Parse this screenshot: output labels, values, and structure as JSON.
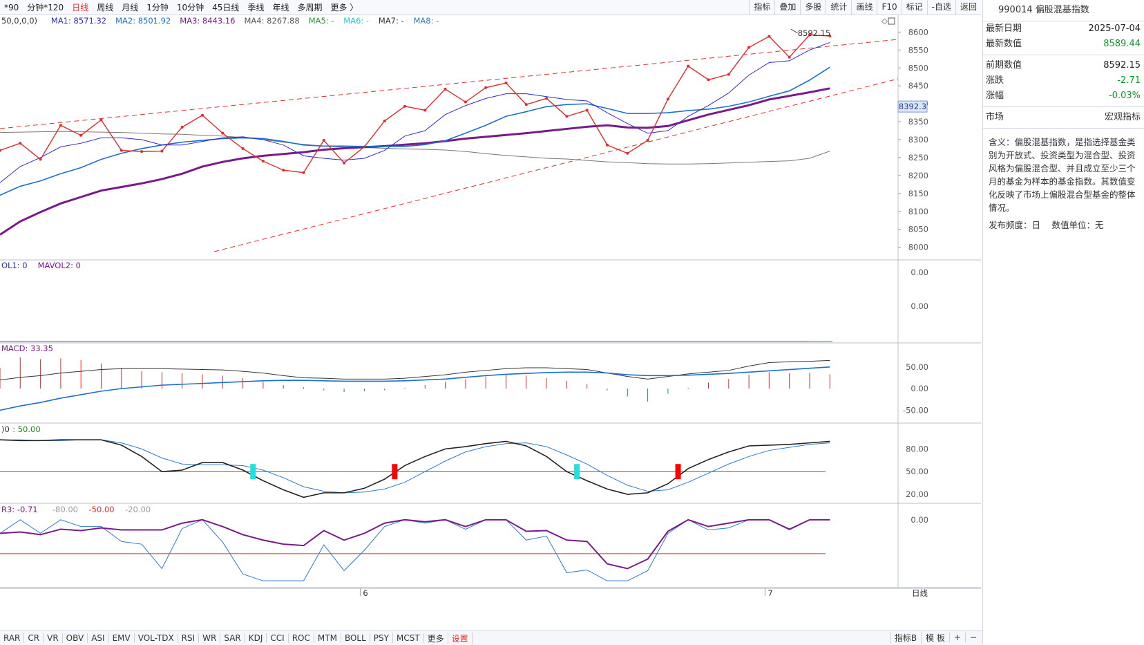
{
  "topbar": {
    "lead": "*90",
    "items": [
      "分钟*120",
      "日线",
      "周线",
      "月线",
      "1分钟",
      "10分钟",
      "45日线",
      "季线",
      "年线",
      "多周期",
      "更多 〉"
    ],
    "active_index": 1
  },
  "toolbar": {
    "items": [
      "指标",
      "叠加",
      "多股",
      "统计",
      "画线",
      "F10",
      "标记",
      "-自选",
      "返回"
    ]
  },
  "side": {
    "title": "990014 偏股混基指数",
    "rows1": [
      {
        "label": "最新日期",
        "value": "2025-07-04",
        "color": "#222222"
      },
      {
        "label": "最新数值",
        "value": "8589.44",
        "color": "#0a9a2a"
      }
    ],
    "rows2": [
      {
        "label": "前期数值",
        "value": "8592.15",
        "color": "#222222"
      },
      {
        "label": "涨跌",
        "value": "-2.71",
        "color": "#0a9a2a"
      },
      {
        "label": "涨幅",
        "value": "-0.03%",
        "color": "#0a9a2a"
      }
    ],
    "market_label": "市场",
    "market_value": "宏观指标",
    "desc": "含义：偏股混基指数，是指选择基金类别为开放式、投资类型为混合型、投资风格为偏股混合型、并且成立至少三个月的基金为样本的基金指数。其数值变化反映了市场上偏股混合型基金的整体情况。",
    "freq": "发布频度：日　 数值单位：无"
  },
  "bottom": {
    "tabs": [
      "RAR",
      "CR",
      "VR",
      "OBV",
      "ASI",
      "EMV",
      "VOL-TDX",
      "RSI",
      "WR",
      "SAR",
      "KDJ",
      "CCI",
      "ROC",
      "MTM",
      "BOLL",
      "PSY",
      "MCST",
      "更多",
      "设置"
    ],
    "red_index": 18,
    "right_tabs": [
      "指标B",
      "模 板",
      "+",
      "−"
    ]
  },
  "chart_data": [
    {
      "type": "line",
      "pane": "main",
      "legend": [
        {
          "text": "50,0,0,0)",
          "color": "#333333"
        },
        {
          "text": "MA1: 8571.32",
          "color": "#2a2ad0"
        },
        {
          "text": "MA2: 8501.92",
          "color": "#1a6fd0"
        },
        {
          "text": "MA3: 8443.16",
          "color": "#7a1a8a"
        },
        {
          "text": "MA4: 8267.88",
          "color": "#555555"
        },
        {
          "text": "MA5: -",
          "color": "#2a9a2a"
        },
        {
          "text": "MA6: -",
          "color": "#20c8d8"
        },
        {
          "text": "MA7: -",
          "color": "#333333"
        },
        {
          "text": "MA8: -",
          "color": "#2a7ad0"
        }
      ],
      "ylim": [
        7980,
        8620
      ],
      "yticks": [
        "8600",
        "8550",
        "8500",
        "8450",
        "8400",
        "8350",
        "8300",
        "8250",
        "8200",
        "8150",
        "8100",
        "8050",
        "8000"
      ],
      "price_tag": "8392.3",
      "annotation": "8592.15",
      "x_date_labels": [
        {
          "i": 17.5,
          "text": "6"
        },
        {
          "i": 37.5,
          "text": "7"
        }
      ],
      "series": [
        {
          "name": "MA0",
          "color": "#e32a2a",
          "values": [
            8270,
            8290,
            8245,
            8340,
            8312,
            8355,
            8270,
            8267,
            8268,
            8335,
            8368,
            8318,
            8275,
            8240,
            8215,
            8208,
            8298,
            8235,
            8280,
            8352,
            8393,
            8382,
            8441,
            8405,
            8445,
            8458,
            8398,
            8415,
            8365,
            8382,
            8285,
            8262,
            8298,
            8413,
            8505,
            8467,
            8482,
            8557,
            8588,
            8530,
            8592,
            8589
          ]
        },
        {
          "name": "MA1",
          "color": "#2a2ad0",
          "values": [
            8180,
            8225,
            8250,
            8280,
            8290,
            8305,
            8305,
            8300,
            8285,
            8285,
            8295,
            8305,
            8308,
            8300,
            8285,
            8255,
            8248,
            8243,
            8248,
            8270,
            8310,
            8325,
            8370,
            8395,
            8415,
            8428,
            8428,
            8420,
            8412,
            8408,
            8375,
            8345,
            8318,
            8325,
            8365,
            8395,
            8430,
            8480,
            8515,
            8520,
            8550,
            8571
          ]
        },
        {
          "name": "MA2",
          "color": "#1a6fd0",
          "values": [
            8145,
            8170,
            8185,
            8205,
            8222,
            8245,
            8262,
            8275,
            8285,
            8293,
            8298,
            8303,
            8305,
            8303,
            8295,
            8285,
            8282,
            8282,
            8281,
            8281,
            8281,
            8286,
            8297,
            8318,
            8340,
            8365,
            8378,
            8392,
            8398,
            8400,
            8387,
            8373,
            8373,
            8375,
            8381,
            8385,
            8393,
            8405,
            8421,
            8436,
            8466,
            8502
          ]
        },
        {
          "name": "MA3",
          "color": "#7a1a8a",
          "values": [
            8035,
            8072,
            8098,
            8122,
            8140,
            8158,
            8168,
            8178,
            8190,
            8205,
            8225,
            8238,
            8248,
            8255,
            8260,
            8265,
            8272,
            8276,
            8279,
            8282,
            8286,
            8290,
            8296,
            8303,
            8308,
            8313,
            8318,
            8324,
            8330,
            8336,
            8340,
            8334,
            8333,
            8338,
            8354,
            8370,
            8383,
            8396,
            8412,
            8422,
            8432,
            8443
          ]
        },
        {
          "name": "MA4",
          "color": "#777777",
          "values": [
            8320,
            8321,
            8322,
            8323,
            8322,
            8321,
            8320,
            8318,
            8316,
            8315,
            8312,
            8310,
            8306,
            8300,
            8293,
            8287,
            8282,
            8279,
            8278,
            8276,
            8274,
            8273,
            8271,
            8267,
            8261,
            8256,
            8252,
            8248,
            8246,
            8242,
            8238,
            8236,
            8233,
            8232,
            8232,
            8233,
            8235,
            8237,
            8239,
            8241,
            8248,
            8268
          ]
        }
      ]
    },
    {
      "type": "bar",
      "pane": "volume",
      "legend": [
        {
          "text": "OL1: 0",
          "color": "#2a2ad0"
        },
        {
          "text": "MAVOL2: 0",
          "color": "#7a1a8a"
        }
      ],
      "yticks": [
        "0.00",
        "0.00"
      ],
      "values": []
    },
    {
      "type": "bar",
      "pane": "macd",
      "legend": [
        {
          "text": "MACD: 33.35",
          "color": "#7a1a8a"
        }
      ],
      "ylim": [
        -70,
        80
      ],
      "yticks": [
        "50.00",
        "0.00",
        "-50.00"
      ],
      "macd_values": [
        48,
        72,
        68,
        70,
        66,
        58,
        48,
        40,
        38,
        36,
        33,
        30,
        24,
        16,
        8,
        3,
        -4,
        -8,
        -6,
        -4,
        2,
        8,
        16,
        22,
        28,
        34,
        30,
        24,
        18,
        10,
        -4,
        -18,
        -30,
        -12,
        2,
        14,
        22,
        32,
        38,
        36,
        37,
        33
      ],
      "dif_values": [
        20,
        26,
        30,
        36,
        40,
        44,
        46,
        46,
        46,
        45,
        44,
        43,
        40,
        36,
        30,
        25,
        24,
        22,
        22,
        22,
        24,
        28,
        32,
        38,
        42,
        46,
        48,
        48,
        46,
        44,
        36,
        28,
        22,
        28,
        34,
        38,
        42,
        52,
        60,
        62,
        63,
        65
      ],
      "dea_values": [
        -50,
        -40,
        -32,
        -22,
        -14,
        -6,
        0,
        4,
        8,
        10,
        12,
        14,
        16,
        18,
        19,
        19,
        18,
        17,
        17,
        17,
        18,
        20,
        22,
        26,
        30,
        33,
        35,
        37,
        38,
        38,
        36,
        32,
        30,
        30,
        31,
        33,
        35,
        38,
        41,
        44,
        47,
        50
      ]
    },
    {
      "type": "line",
      "pane": "kdj",
      "legend": [
        {
          "text": ")0",
          "color": "#333333"
        },
        {
          "text": ": 50.00",
          "color": "#1a8a1a"
        }
      ],
      "ylim": [
        10,
        105
      ],
      "yticks": [
        "80.00",
        "50.00",
        "20.00"
      ],
      "series": [
        {
          "name": "K",
          "color": "#222222",
          "values": [
            92,
            91,
            91,
            92,
            92,
            92,
            85,
            70,
            50,
            52,
            62,
            62,
            52,
            38,
            26,
            16,
            22,
            22,
            28,
            40,
            58,
            70,
            80,
            83,
            87,
            90,
            84,
            70,
            50,
            38,
            27,
            20,
            22,
            34,
            54,
            66,
            76,
            84,
            85,
            86,
            88,
            90
          ]
        },
        {
          "name": "D",
          "color": "#2a7ad0",
          "values": [
            92,
            92,
            91,
            91,
            92,
            92,
            88,
            80,
            68,
            60,
            59,
            59,
            58,
            52,
            42,
            30,
            24,
            22,
            23,
            27,
            36,
            50,
            64,
            76,
            83,
            87,
            88,
            83,
            72,
            60,
            45,
            32,
            24,
            26,
            36,
            48,
            60,
            70,
            78,
            82,
            86,
            88
          ]
        }
      ],
      "signals": [
        {
          "i": 12.5,
          "color": "#22e0e0"
        },
        {
          "i": 19.5,
          "color": "#ff0000"
        },
        {
          "i": 28.5,
          "color": "#22e0e0"
        },
        {
          "i": 33.5,
          "color": "#ff0000"
        }
      ]
    },
    {
      "type": "line",
      "pane": "wr",
      "legend": [
        {
          "text": "R3: -0.71",
          "color": "#7a1a8a"
        },
        {
          "text": "-80.00",
          "color": "#999999"
        },
        {
          "text": "-50.00",
          "color": "#e32a2a"
        },
        {
          "text": "-20.00",
          "color": "#999999"
        }
      ],
      "ylim": [
        -100,
        10
      ],
      "yticks": [
        "0.00"
      ],
      "ref_line": -50,
      "series": [
        {
          "name": "R3",
          "color": "#7a1a8a",
          "values": [
            -20,
            -18,
            -22,
            -14,
            -16,
            -12,
            -15,
            -15,
            -15,
            -5,
            0,
            -10,
            -22,
            -30,
            -36,
            -38,
            -16,
            -30,
            -20,
            -5,
            0,
            -3,
            0,
            -10,
            0,
            0,
            -17,
            -16,
            -30,
            -32,
            -65,
            -72,
            -58,
            -17,
            0,
            -10,
            -5,
            0,
            0,
            -14,
            0,
            0
          ]
        },
        {
          "name": "R2",
          "color": "#2a7ad0",
          "values": [
            -20,
            0,
            -20,
            0,
            -10,
            -10,
            -32,
            -36,
            -72,
            -13,
            0,
            -33,
            -80,
            -90,
            -90,
            -90,
            -37,
            -75,
            -45,
            -10,
            0,
            -5,
            0,
            -14,
            0,
            0,
            -30,
            -24,
            -78,
            -74,
            -90,
            -90,
            -75,
            -20,
            0,
            -15,
            -12,
            0,
            0,
            -15,
            0,
            0
          ]
        }
      ]
    }
  ]
}
